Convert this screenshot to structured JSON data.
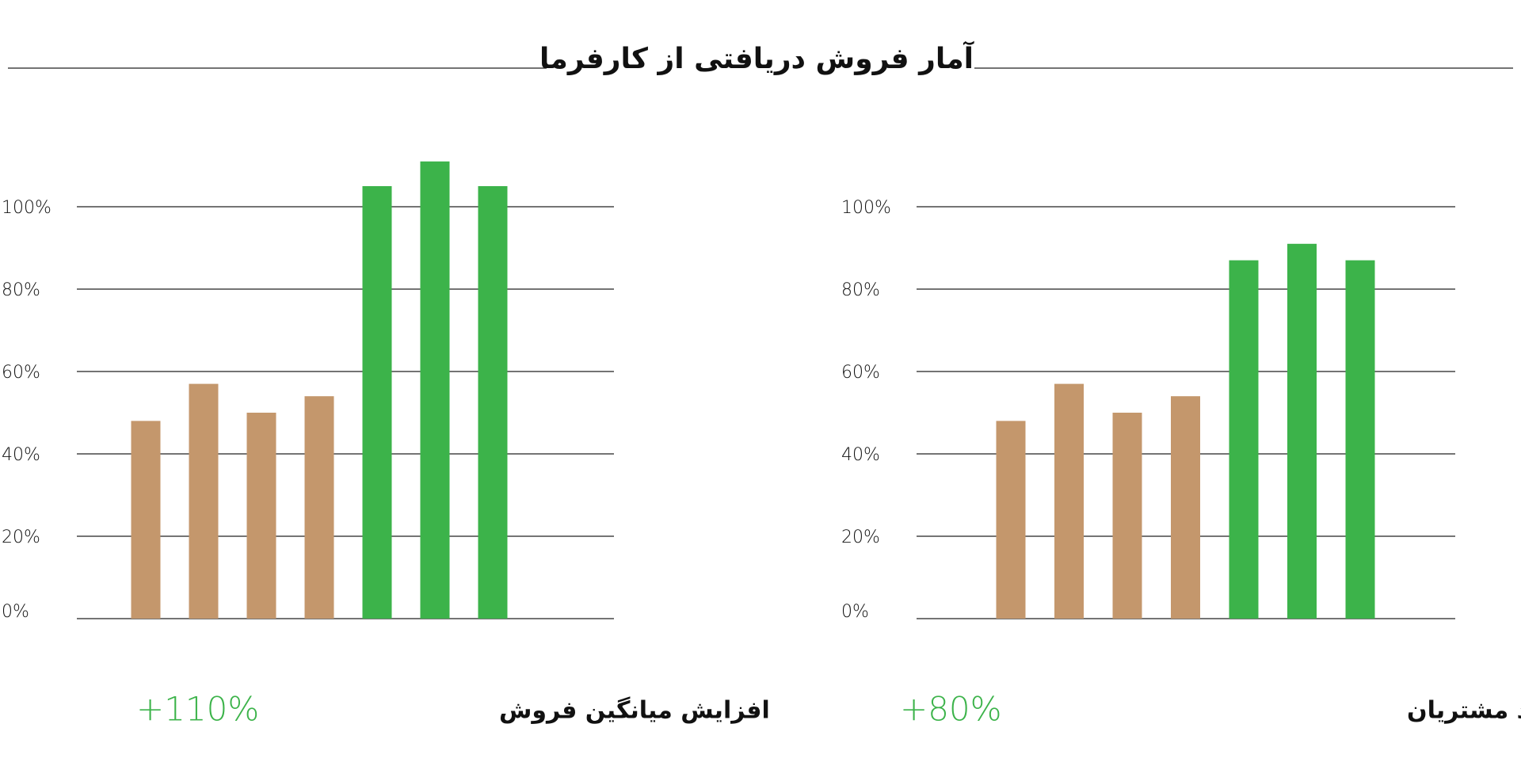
{
  "title": "آمار فروش دریافتی از کارفرما",
  "chart_data": [
    {
      "type": "bar",
      "caption": "افزایش میانگین فروش",
      "highlight": "+110%",
      "categories": [
        null,
        null,
        null,
        null,
        null,
        null,
        null
      ],
      "values": [
        48,
        57,
        50,
        54,
        105,
        111,
        105
      ],
      "colors": [
        "#c4976c",
        "#c4976c",
        "#c4976c",
        "#c4976c",
        "#3cb34a",
        "#3cb34a",
        "#3cb34a"
      ],
      "ylim": [
        0,
        115
      ],
      "yticks": [
        {
          "value": 0,
          "label": "0%"
        },
        {
          "value": 20,
          "label": "20%"
        },
        {
          "value": 40,
          "label": "40%"
        },
        {
          "value": 60,
          "label": "60%"
        },
        {
          "value": 80,
          "label": "80%"
        },
        {
          "value": 100,
          "label": "100%"
        }
      ],
      "grid": true
    },
    {
      "type": "bar",
      "caption": "افزایش آگاهی از برند و تعداد مشتریان",
      "highlight": "+80%",
      "categories": [
        null,
        null,
        null,
        null,
        null,
        null,
        null
      ],
      "values": [
        48,
        57,
        50,
        54,
        87,
        91,
        87
      ],
      "colors": [
        "#c4976c",
        "#c4976c",
        "#c4976c",
        "#c4976c",
        "#3cb34a",
        "#3cb34a",
        "#3cb34a"
      ],
      "ylim": [
        0,
        115
      ],
      "yticks": [
        {
          "value": 0,
          "label": "0%"
        },
        {
          "value": 20,
          "label": "20%"
        },
        {
          "value": 40,
          "label": "40%"
        },
        {
          "value": 60,
          "label": "60%"
        },
        {
          "value": 80,
          "label": "80%"
        },
        {
          "value": 100,
          "label": "100%"
        }
      ],
      "grid": true
    }
  ]
}
